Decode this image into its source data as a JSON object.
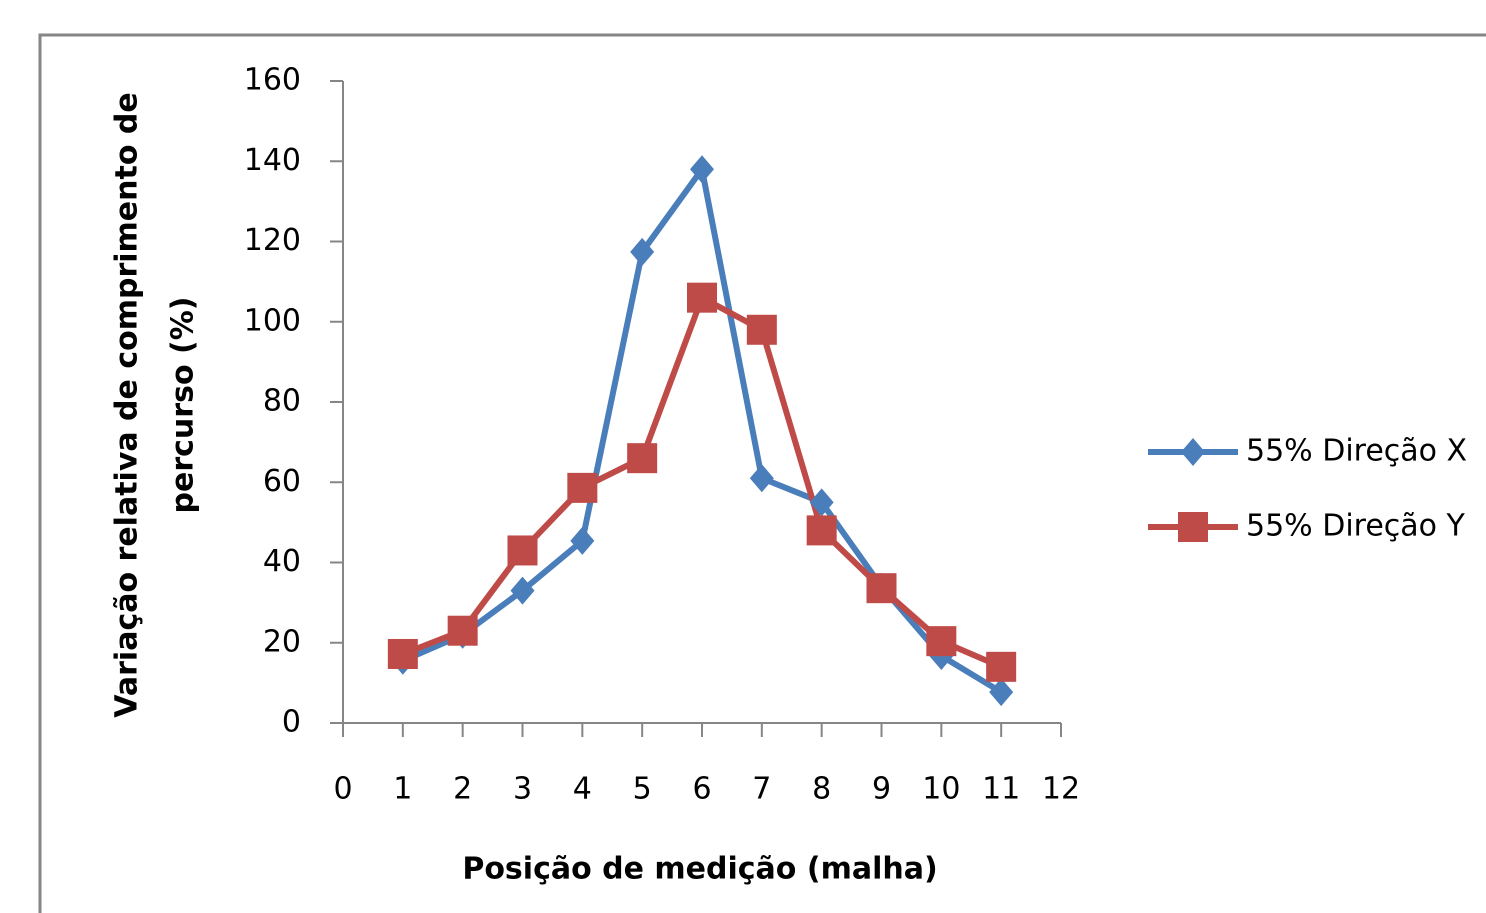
{
  "chart_data": {
    "type": "line",
    "x_label": "Posição de medição (malha)",
    "y_label": [
      "Variação relativa de comprimento de",
      "percurso (%)"
    ],
    "x": [
      1,
      2,
      3,
      4,
      5,
      6,
      7,
      8,
      9,
      10,
      11
    ],
    "series": [
      {
        "name": "55% Direção X",
        "color": "#4a7ebb",
        "marker": "diamond",
        "values": [
          15.5,
          22,
          33,
          45.4,
          117.4,
          138,
          61,
          55,
          34,
          16.7,
          7.7
        ]
      },
      {
        "name": "55% Direção Y",
        "color": "#be4b48",
        "marker": "square",
        "values": [
          17.2,
          23,
          43,
          58.6,
          66,
          106,
          98,
          48,
          33.6,
          20.4,
          14
        ]
      }
    ],
    "xlim": [
      0,
      12
    ],
    "xticks": [
      0,
      1,
      2,
      3,
      4,
      5,
      6,
      7,
      8,
      9,
      10,
      11,
      12
    ],
    "ylim": [
      0,
      160
    ],
    "yticks": [
      0,
      20,
      40,
      60,
      80,
      100,
      120,
      140,
      160
    ],
    "grid": false,
    "legend": "right"
  }
}
